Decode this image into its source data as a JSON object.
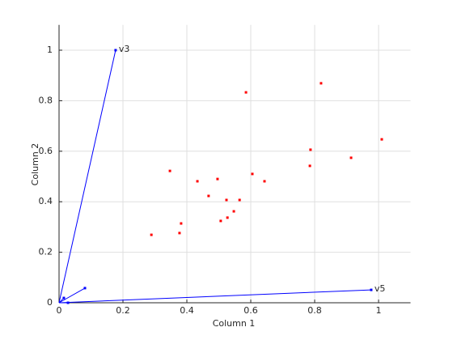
{
  "chart_data": {
    "type": "biplot",
    "xlabel": "Column 1",
    "ylabel": "Column 2",
    "xlim": [
      0,
      1.1
    ],
    "ylim": [
      0,
      1.1
    ],
    "xticks": [
      0,
      0.2,
      0.4,
      0.6,
      0.8,
      1
    ],
    "yticks": [
      0,
      0.2,
      0.4,
      0.6,
      0.8,
      1
    ],
    "grid": true,
    "vectors": {
      "color": "#0000ff",
      "x": [
        0.015,
        0.028,
        0.081,
        0.177,
        0.977
      ],
      "y": [
        0.019,
        0.0,
        0.058,
        1.0,
        0.051
      ],
      "labels": [
        null,
        null,
        null,
        "v3",
        "v5"
      ]
    },
    "points": {
      "color": "#ff0000",
      "x": [
        0.585,
        0.82,
        1.01,
        0.787,
        0.914,
        0.785,
        0.347,
        0.496,
        0.605,
        0.643,
        0.433,
        0.468,
        0.524,
        0.565,
        0.547,
        0.527,
        0.506,
        0.382,
        0.377,
        0.289
      ],
      "y": [
        0.833,
        0.869,
        0.647,
        0.606,
        0.574,
        0.542,
        0.522,
        0.49,
        0.51,
        0.481,
        0.481,
        0.423,
        0.407,
        0.407,
        0.362,
        0.337,
        0.324,
        0.314,
        0.276,
        0.269
      ]
    }
  }
}
